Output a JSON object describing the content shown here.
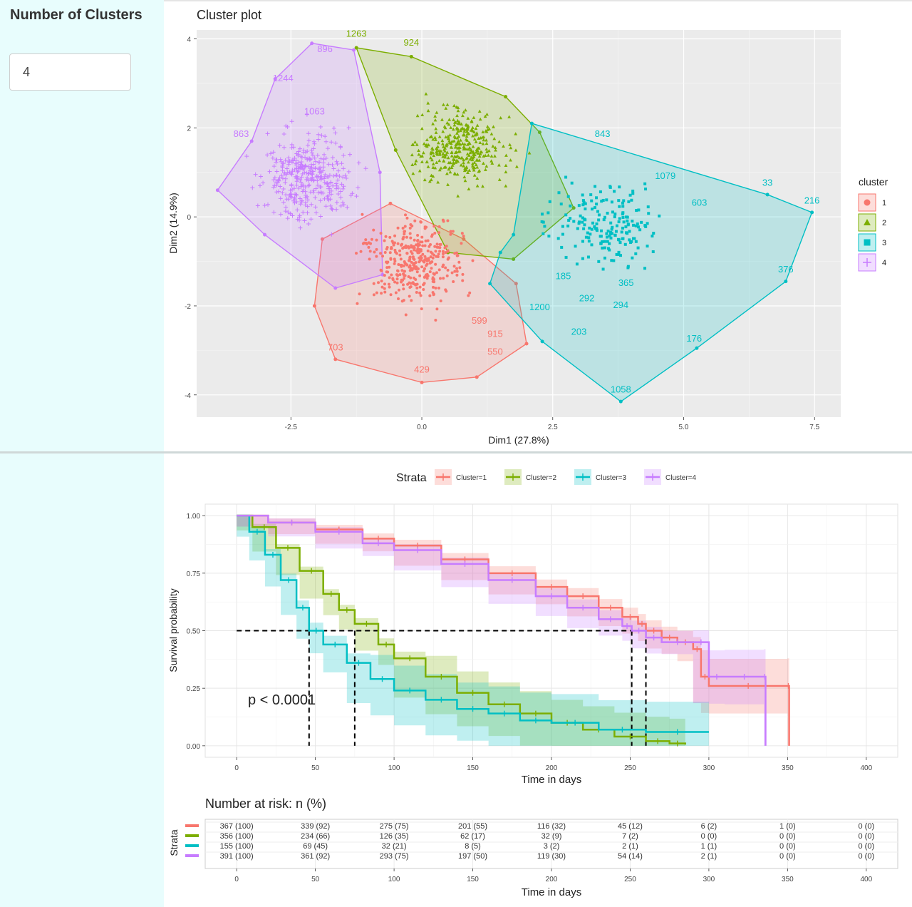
{
  "sidebar": {
    "label": "Number of Clusters",
    "input_value": "4"
  },
  "colors": {
    "cluster1": "#F8766D",
    "cluster2": "#7CAE00",
    "cluster3": "#00BFC4",
    "cluster4": "#C77CFF",
    "panel_bg": "#EBEBEB",
    "sidebar_bg": "#E8FDFD"
  },
  "chart_data": [
    {
      "type": "scatter",
      "title": "Cluster plot",
      "xlabel": "Dim1 (27.8%)",
      "ylabel": "Dim2 (14.9%)",
      "xlim": [
        -4.3,
        8.0
      ],
      "ylim": [
        -4.5,
        4.2
      ],
      "xticks": [
        -2.5,
        0.0,
        2.5,
        5.0,
        7.5
      ],
      "xtick_labels": [
        "-2.5",
        "0.0",
        "2.5",
        "5.0",
        "7.5"
      ],
      "yticks": [
        -4,
        -2,
        0,
        2,
        4
      ],
      "ytick_labels": [
        "-4",
        "-2",
        "0",
        "2",
        "4"
      ],
      "grid": true,
      "legend": {
        "title": "cluster",
        "position": "right",
        "entries": [
          "1",
          "2",
          "3",
          "4"
        ],
        "markers": [
          "circle",
          "triangle",
          "square",
          "cross"
        ]
      },
      "hulls": [
        {
          "cluster": "1",
          "points": [
            [
              -2.05,
              -2.0
            ],
            [
              -1.65,
              -3.2
            ],
            [
              0.0,
              -3.72
            ],
            [
              1.05,
              -3.6
            ],
            [
              2.0,
              -2.85
            ],
            [
              1.8,
              -1.5
            ],
            [
              0.8,
              -0.5
            ],
            [
              -0.6,
              0.3
            ],
            [
              -1.9,
              -0.5
            ]
          ]
        },
        {
          "cluster": "2",
          "points": [
            [
              -1.25,
              3.8
            ],
            [
              -0.2,
              3.6
            ],
            [
              1.6,
              2.7
            ],
            [
              2.25,
              1.9
            ],
            [
              2.9,
              0.2
            ],
            [
              1.75,
              -0.95
            ],
            [
              0.5,
              -0.8
            ],
            [
              -0.5,
              1.5
            ]
          ]
        },
        {
          "cluster": "3",
          "points": [
            [
              2.1,
              2.1
            ],
            [
              6.6,
              0.5
            ],
            [
              7.45,
              0.1
            ],
            [
              6.95,
              -1.45
            ],
            [
              5.25,
              -2.95
            ],
            [
              3.8,
              -4.15
            ],
            [
              2.3,
              -2.8
            ],
            [
              1.3,
              -1.5
            ],
            [
              1.5,
              -0.8
            ],
            [
              1.75,
              -0.4
            ]
          ]
        },
        {
          "cluster": "4",
          "points": [
            [
              -2.1,
              3.9
            ],
            [
              -1.3,
              3.75
            ],
            [
              -0.8,
              1.0
            ],
            [
              -0.75,
              -1.3
            ],
            [
              -1.65,
              -1.6
            ],
            [
              -3.0,
              -0.4
            ],
            [
              -3.9,
              0.6
            ],
            [
              -3.25,
              1.7
            ],
            [
              -2.8,
              3.1
            ]
          ]
        }
      ],
      "point_labels": [
        {
          "text": "1263",
          "x": -1.25,
          "y": 4.05,
          "cluster": "2"
        },
        {
          "text": "924",
          "x": -0.2,
          "y": 3.85,
          "cluster": "2"
        },
        {
          "text": "896",
          "x": -1.85,
          "y": 3.7,
          "cluster": "4"
        },
        {
          "text": "1244",
          "x": -2.65,
          "y": 3.05,
          "cluster": "4"
        },
        {
          "text": "1063",
          "x": -2.05,
          "y": 2.3,
          "cluster": "4"
        },
        {
          "text": "863",
          "x": -3.45,
          "y": 1.8,
          "cluster": "4"
        },
        {
          "text": "843",
          "x": 3.45,
          "y": 1.8,
          "cluster": "3"
        },
        {
          "text": "1079",
          "x": 4.65,
          "y": 0.85,
          "cluster": "3"
        },
        {
          "text": "33",
          "x": 6.6,
          "y": 0.7,
          "cluster": "3"
        },
        {
          "text": "216",
          "x": 7.45,
          "y": 0.3,
          "cluster": "3"
        },
        {
          "text": "603",
          "x": 5.3,
          "y": 0.25,
          "cluster": "3"
        },
        {
          "text": "376",
          "x": 6.95,
          "y": -1.25,
          "cluster": "3"
        },
        {
          "text": "365",
          "x": 3.9,
          "y": -1.55,
          "cluster": "3"
        },
        {
          "text": "185",
          "x": 2.7,
          "y": -1.4,
          "cluster": "3"
        },
        {
          "text": "292",
          "x": 3.15,
          "y": -1.9,
          "cluster": "3"
        },
        {
          "text": "294",
          "x": 3.8,
          "y": -2.05,
          "cluster": "3"
        },
        {
          "text": "1200",
          "x": 2.25,
          "y": -2.1,
          "cluster": "3"
        },
        {
          "text": "203",
          "x": 3.0,
          "y": -2.65,
          "cluster": "3"
        },
        {
          "text": "176",
          "x": 5.2,
          "y": -2.8,
          "cluster": "3"
        },
        {
          "text": "1058",
          "x": 3.8,
          "y": -3.95,
          "cluster": "3"
        },
        {
          "text": "703",
          "x": -1.65,
          "y": -3.0,
          "cluster": "1"
        },
        {
          "text": "599",
          "x": 1.1,
          "y": -2.4,
          "cluster": "1"
        },
        {
          "text": "915",
          "x": 1.4,
          "y": -2.7,
          "cluster": "1"
        },
        {
          "text": "550",
          "x": 1.4,
          "y": -3.1,
          "cluster": "1"
        },
        {
          "text": "429",
          "x": 0.0,
          "y": -3.5,
          "cluster": "1"
        }
      ]
    },
    {
      "type": "line",
      "legend": {
        "title": "Strata",
        "position": "top",
        "entries": [
          "Cluster=1",
          "Cluster=2",
          "Cluster=3",
          "Cluster=4"
        ]
      },
      "xlabel": "Time in days",
      "ylabel": "Survival probability",
      "xlim": [
        -20,
        420
      ],
      "ylim": [
        -0.05,
        1.05
      ],
      "xticks": [
        0,
        50,
        100,
        150,
        200,
        250,
        300,
        350,
        400
      ],
      "xtick_labels": [
        "0",
        "50",
        "100",
        "150",
        "200",
        "250",
        "300",
        "350",
        "400"
      ],
      "yticks": [
        0.0,
        0.25,
        0.5,
        0.75,
        1.0
      ],
      "ytick_labels": [
        "0.00",
        "0.25",
        "0.50",
        "0.75",
        "1.00"
      ],
      "grid": true,
      "annotation": "p < 0.0001",
      "median_line_y": 0.5,
      "medians": [
        260,
        75,
        46,
        251
      ],
      "series": [
        {
          "name": "Cluster=1",
          "x": [
            0,
            20,
            50,
            80,
            100,
            130,
            160,
            190,
            210,
            230,
            245,
            255,
            260,
            270,
            280,
            290,
            295,
            300,
            350,
            351
          ],
          "y": [
            1.0,
            0.97,
            0.94,
            0.9,
            0.87,
            0.81,
            0.75,
            0.69,
            0.65,
            0.6,
            0.56,
            0.53,
            0.5,
            0.47,
            0.45,
            0.42,
            0.3,
            0.26,
            0.26,
            0.0
          ]
        },
        {
          "name": "Cluster=2",
          "x": [
            0,
            10,
            25,
            40,
            55,
            65,
            75,
            90,
            100,
            120,
            140,
            160,
            180,
            200,
            220,
            240,
            260,
            275,
            285
          ],
          "y": [
            1.0,
            0.95,
            0.86,
            0.76,
            0.66,
            0.59,
            0.53,
            0.44,
            0.38,
            0.3,
            0.23,
            0.18,
            0.14,
            0.1,
            0.07,
            0.04,
            0.02,
            0.01,
            0.005
          ]
        },
        {
          "name": "Cluster=3",
          "x": [
            0,
            8,
            18,
            28,
            38,
            46,
            55,
            70,
            85,
            100,
            120,
            140,
            160,
            180,
            200,
            230,
            260,
            300
          ],
          "y": [
            1.0,
            0.93,
            0.83,
            0.72,
            0.6,
            0.5,
            0.44,
            0.36,
            0.29,
            0.24,
            0.2,
            0.16,
            0.14,
            0.11,
            0.1,
            0.07,
            0.06,
            0.06
          ]
        },
        {
          "name": "Cluster=4",
          "x": [
            0,
            20,
            50,
            80,
            100,
            130,
            160,
            190,
            210,
            230,
            245,
            251,
            260,
            270,
            290,
            300,
            310,
            335,
            336
          ],
          "y": [
            1.0,
            0.97,
            0.93,
            0.88,
            0.85,
            0.79,
            0.72,
            0.65,
            0.6,
            0.55,
            0.52,
            0.5,
            0.47,
            0.45,
            0.45,
            0.3,
            0.3,
            0.3,
            0.0
          ]
        }
      ]
    },
    {
      "type": "table",
      "title": "Number at risk: n (%)",
      "ylabel": "Strata",
      "xlabel": "Time in days",
      "x": [
        0,
        50,
        100,
        150,
        200,
        250,
        300,
        350,
        400
      ],
      "xtick_labels": [
        "0",
        "50",
        "100",
        "150",
        "200",
        "250",
        "300",
        "350",
        "400"
      ],
      "rows": [
        [
          "367 (100)",
          "339 (92)",
          "275 (75)",
          "201 (55)",
          "116 (32)",
          "45 (12)",
          "6 (2)",
          "1 (0)",
          "0 (0)"
        ],
        [
          "356 (100)",
          "234 (66)",
          "126 (35)",
          "62 (17)",
          "32 (9)",
          "7 (2)",
          "0 (0)",
          "0 (0)",
          "0 (0)"
        ],
        [
          "155 (100)",
          "69 (45)",
          "32 (21)",
          "8 (5)",
          "3 (2)",
          "2 (1)",
          "1 (1)",
          "0 (0)",
          "0 (0)"
        ],
        [
          "391 (100)",
          "361 (92)",
          "293 (75)",
          "197 (50)",
          "119 (30)",
          "54 (14)",
          "2 (1)",
          "0 (0)",
          "0 (0)"
        ]
      ]
    }
  ]
}
